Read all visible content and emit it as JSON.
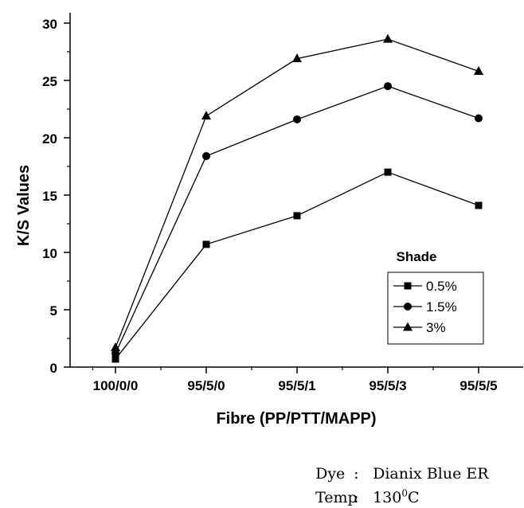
{
  "chart_data": {
    "type": "line",
    "xlabel": "Fibre (PP/PTT/MAPP)",
    "ylabel": "K/S Values",
    "categories": [
      "100/0/0",
      "95/5/0",
      "95/5/1",
      "95/5/3",
      "95/5/5"
    ],
    "ylim": [
      0,
      30
    ],
    "yticks": [
      0,
      5,
      10,
      15,
      20,
      25,
      30
    ],
    "legend_title": "Shade",
    "legend_position": "lower-right",
    "grid": false,
    "series": [
      {
        "name": "0.5%",
        "marker": "square",
        "values": [
          0.7,
          10.7,
          13.2,
          17.0,
          14.1
        ]
      },
      {
        "name": "1.5%",
        "marker": "circle",
        "values": [
          1.2,
          18.4,
          21.6,
          24.5,
          21.7
        ]
      },
      {
        "name": "3%",
        "marker": "triangle",
        "values": [
          1.7,
          21.9,
          26.9,
          28.6,
          25.8
        ]
      }
    ]
  },
  "notes": {
    "dye_label": "Dye",
    "dye_sep": ":",
    "dye_value": "Dianix Blue ER",
    "temp_label": "Temp",
    "temp_sep": ":",
    "temp_value_number": "130",
    "temp_value_sup": "0",
    "temp_value_unit": "C"
  }
}
